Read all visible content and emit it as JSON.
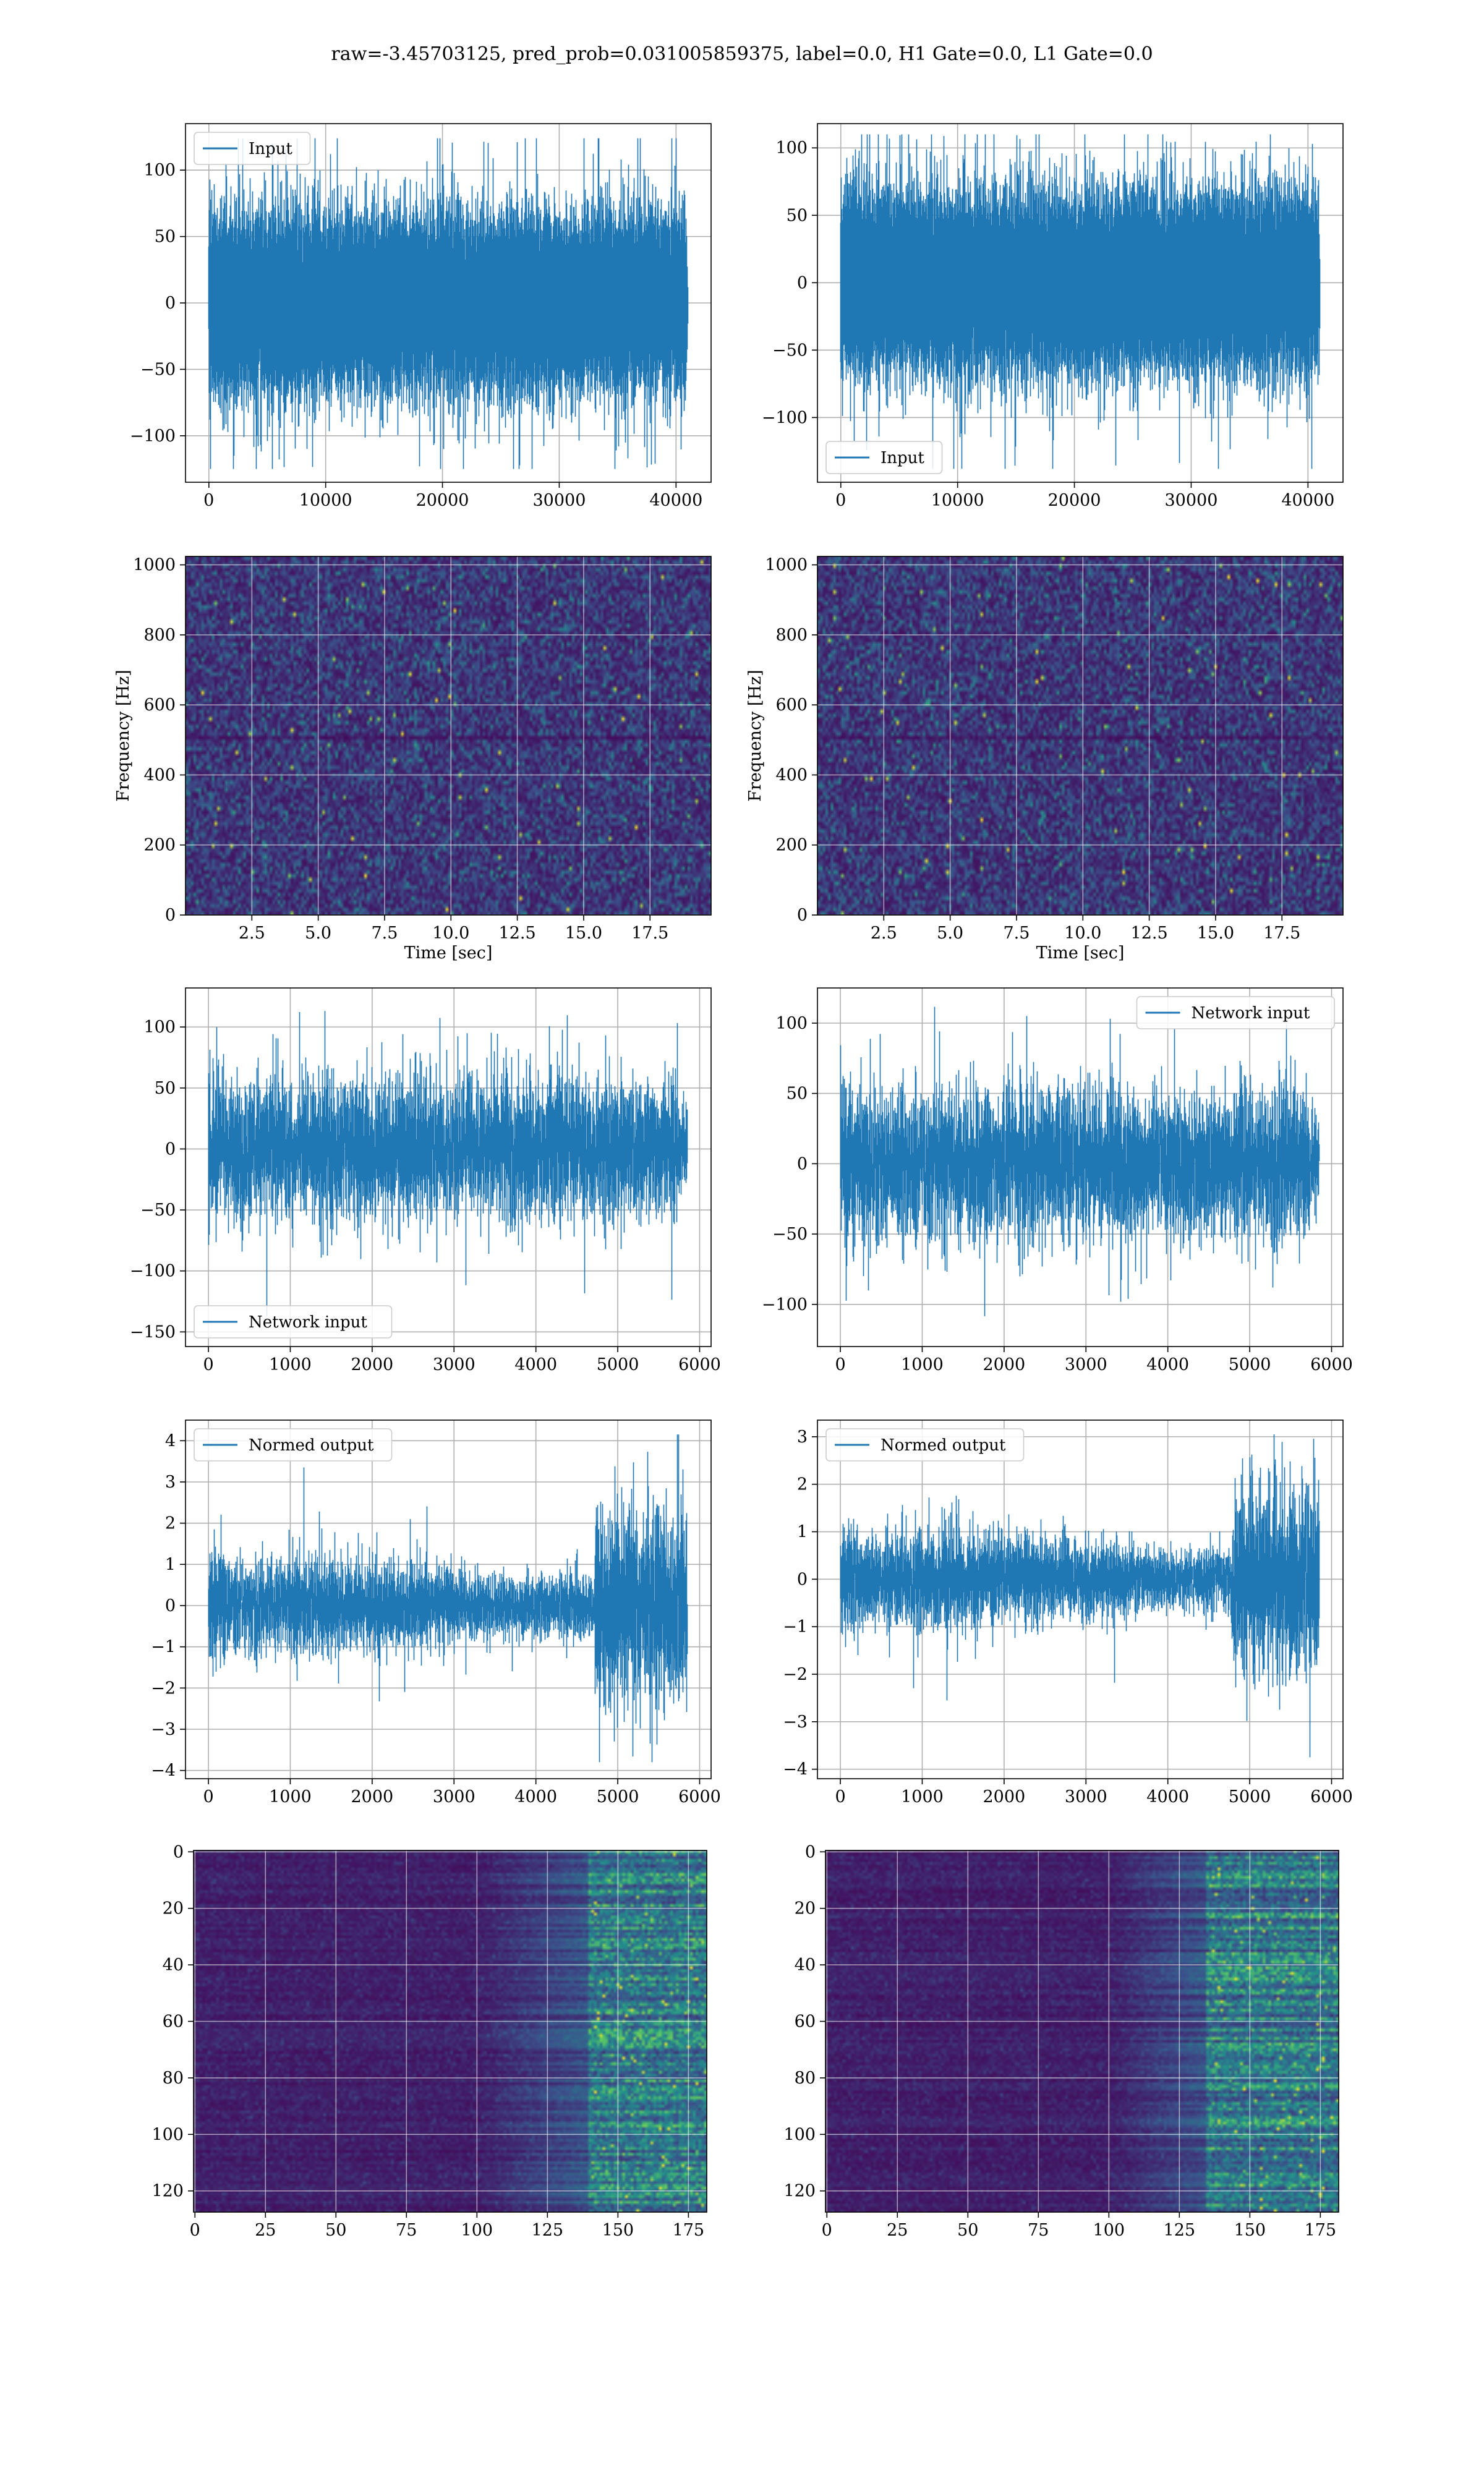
{
  "figure": {
    "title": "raw=-3.45703125, pred_prob=0.031005859375, label=0.0, H1 Gate=0.0, L1 Gate=0.0"
  },
  "colors": {
    "line": "#1f77b4",
    "grid": "#b0b0b0",
    "viridis_low": "#440154",
    "viridis_mid": "#21908d",
    "viridis_high": "#fde725"
  },
  "chart_data": [
    {
      "id": "input-h1",
      "type": "line",
      "series": [
        {
          "name": "Input",
          "kind": "noise",
          "n": 41000,
          "std": 28,
          "clip": [
            -125,
            124
          ]
        }
      ],
      "xlim": [
        -2000,
        43000
      ],
      "ylim": [
        -135,
        135
      ],
      "xticks": [
        0,
        10000,
        20000,
        30000,
        40000
      ],
      "xtick_labels": [
        "0",
        "10000",
        "20000",
        "30000",
        "40000"
      ],
      "yticks": [
        -100,
        -50,
        0,
        50,
        100
      ],
      "ytick_labels": [
        "−100",
        "−50",
        "0",
        "50",
        "100"
      ],
      "xlabel": "",
      "ylabel": "",
      "legend": "upper-left",
      "grid": true
    },
    {
      "id": "input-l1",
      "type": "line",
      "series": [
        {
          "name": "Input",
          "kind": "noise",
          "n": 41000,
          "std": 28,
          "clip": [
            -138,
            110
          ]
        }
      ],
      "xlim": [
        -2000,
        43000
      ],
      "ylim": [
        -148,
        118
      ],
      "xticks": [
        0,
        10000,
        20000,
        30000,
        40000
      ],
      "xtick_labels": [
        "0",
        "10000",
        "20000",
        "30000",
        "40000"
      ],
      "yticks": [
        -100,
        -50,
        0,
        50,
        100
      ],
      "ytick_labels": [
        "−100",
        "−50",
        "0",
        "50",
        "100"
      ],
      "xlabel": "",
      "ylabel": "",
      "legend": "lower-left",
      "grid": true
    },
    {
      "id": "spectrogram-h1",
      "type": "heatmap",
      "xlim": [
        0,
        19.8
      ],
      "ylim": [
        0,
        1024
      ],
      "xticks": [
        2.5,
        5,
        7.5,
        10,
        12.5,
        15,
        17.5
      ],
      "xtick_labels": [
        "2.5",
        "5.0",
        "7.5",
        "10.0",
        "12.5",
        "15.0",
        "17.5"
      ],
      "yticks": [
        0,
        200,
        400,
        600,
        800,
        1000
      ],
      "ytick_labels": [
        "0",
        "200",
        "400",
        "600",
        "800",
        "1000"
      ],
      "xlabel": "Time [sec]",
      "ylabel": "Frequency [Hz]",
      "grid": true,
      "colormap": "viridis"
    },
    {
      "id": "spectrogram-l1",
      "type": "heatmap",
      "xlim": [
        0,
        19.8
      ],
      "ylim": [
        0,
        1024
      ],
      "xticks": [
        2.5,
        5,
        7.5,
        10,
        12.5,
        15,
        17.5
      ],
      "xtick_labels": [
        "2.5",
        "5.0",
        "7.5",
        "10.0",
        "12.5",
        "15.0",
        "17.5"
      ],
      "yticks": [
        0,
        200,
        400,
        600,
        800,
        1000
      ],
      "ytick_labels": [
        "0",
        "200",
        "400",
        "600",
        "800",
        "1000"
      ],
      "xlabel": "Time [sec]",
      "ylabel": "Frequency [Hz]",
      "grid": true,
      "colormap": "viridis"
    },
    {
      "id": "network-input-h1",
      "type": "line",
      "series": [
        {
          "name": "Network input",
          "kind": "noise",
          "n": 5850,
          "std": 27,
          "clip": [
            -150,
            117
          ]
        }
      ],
      "xlim": [
        -280,
        6140
      ],
      "ylim": [
        -162,
        132
      ],
      "xticks": [
        0,
        1000,
        2000,
        3000,
        4000,
        5000,
        6000
      ],
      "xtick_labels": [
        "0",
        "1000",
        "2000",
        "3000",
        "4000",
        "5000",
        "6000"
      ],
      "yticks": [
        -150,
        -100,
        -50,
        0,
        50,
        100
      ],
      "ytick_labels": [
        "−150",
        "−100",
        "−50",
        "0",
        "50",
        "100"
      ],
      "xlabel": "",
      "ylabel": "",
      "legend": "lower-left",
      "grid": true
    },
    {
      "id": "network-input-l1",
      "type": "line",
      "series": [
        {
          "name": "Network input",
          "kind": "noise",
          "n": 5850,
          "std": 25,
          "clip": [
            -118,
            112
          ]
        }
      ],
      "xlim": [
        -280,
        6140
      ],
      "ylim": [
        -130,
        125
      ],
      "xticks": [
        0,
        1000,
        2000,
        3000,
        4000,
        5000,
        6000
      ],
      "xtick_labels": [
        "0",
        "1000",
        "2000",
        "3000",
        "4000",
        "5000",
        "6000"
      ],
      "yticks": [
        -100,
        -50,
        0,
        50,
        100
      ],
      "ytick_labels": [
        "−100",
        "−50",
        "0",
        "50",
        "100"
      ],
      "xlabel": "",
      "ylabel": "",
      "legend": "upper-right",
      "grid": true
    },
    {
      "id": "normed-output-h1",
      "type": "line",
      "series": [
        {
          "name": "Normed output",
          "kind": "normed",
          "n": 5850,
          "std": 0.45,
          "burst_start": 4720,
          "burst_std": 1.1,
          "clip": [
            -3.8,
            4.15
          ]
        }
      ],
      "xlim": [
        -280,
        6140
      ],
      "ylim": [
        -4.2,
        4.5
      ],
      "xticks": [
        0,
        1000,
        2000,
        3000,
        4000,
        5000,
        6000
      ],
      "xtick_labels": [
        "0",
        "1000",
        "2000",
        "3000",
        "4000",
        "5000",
        "6000"
      ],
      "yticks": [
        -4,
        -3,
        -2,
        -1,
        0,
        1,
        2,
        3,
        4
      ],
      "ytick_labels": [
        "−4",
        "−3",
        "−2",
        "−1",
        "0",
        "1",
        "2",
        "3",
        "4"
      ],
      "xlabel": "",
      "ylabel": "",
      "legend": "upper-left",
      "grid": true
    },
    {
      "id": "normed-output-l1",
      "type": "line",
      "series": [
        {
          "name": "Normed output",
          "kind": "normed",
          "n": 5850,
          "std": 0.4,
          "burst_start": 4780,
          "burst_std": 0.95,
          "clip": [
            -3.75,
            3.05
          ]
        }
      ],
      "xlim": [
        -280,
        6140
      ],
      "ylim": [
        -4.2,
        3.35
      ],
      "xticks": [
        0,
        1000,
        2000,
        3000,
        4000,
        5000,
        6000
      ],
      "xtick_labels": [
        "0",
        "1000",
        "2000",
        "3000",
        "4000",
        "5000",
        "6000"
      ],
      "yticks": [
        -4,
        -3,
        -2,
        -1,
        0,
        1,
        2,
        3
      ],
      "ytick_labels": [
        "−4",
        "−3",
        "−2",
        "−1",
        "0",
        "1",
        "2",
        "3"
      ],
      "xlabel": "",
      "ylabel": "",
      "legend": "upper-left",
      "grid": true
    },
    {
      "id": "embedding-h1",
      "type": "heatmap",
      "xlim": [
        -0.5,
        181.5
      ],
      "ylim": [
        127.5,
        -0.5
      ],
      "xticks": [
        0,
        25,
        50,
        75,
        100,
        125,
        150,
        175
      ],
      "xtick_labels": [
        "0",
        "25",
        "50",
        "75",
        "100",
        "125",
        "150",
        "175"
      ],
      "yticks": [
        0,
        20,
        40,
        60,
        80,
        100,
        120
      ],
      "ytick_labels": [
        "0",
        "20",
        "40",
        "60",
        "80",
        "100",
        "120"
      ],
      "xlabel": "",
      "ylabel": "",
      "grid": true,
      "colormap": "viridis",
      "bright_from": 140
    },
    {
      "id": "embedding-l1",
      "type": "heatmap",
      "xlim": [
        -0.5,
        181.5
      ],
      "ylim": [
        127.5,
        -0.5
      ],
      "xticks": [
        0,
        25,
        50,
        75,
        100,
        125,
        150,
        175
      ],
      "xtick_labels": [
        "0",
        "25",
        "50",
        "75",
        "100",
        "125",
        "150",
        "175"
      ],
      "yticks": [
        0,
        20,
        40,
        60,
        80,
        100,
        120
      ],
      "ytick_labels": [
        "0",
        "20",
        "40",
        "60",
        "80",
        "100",
        "120"
      ],
      "xlabel": "",
      "ylabel": "",
      "grid": true,
      "colormap": "viridis",
      "bright_from": 135
    }
  ]
}
